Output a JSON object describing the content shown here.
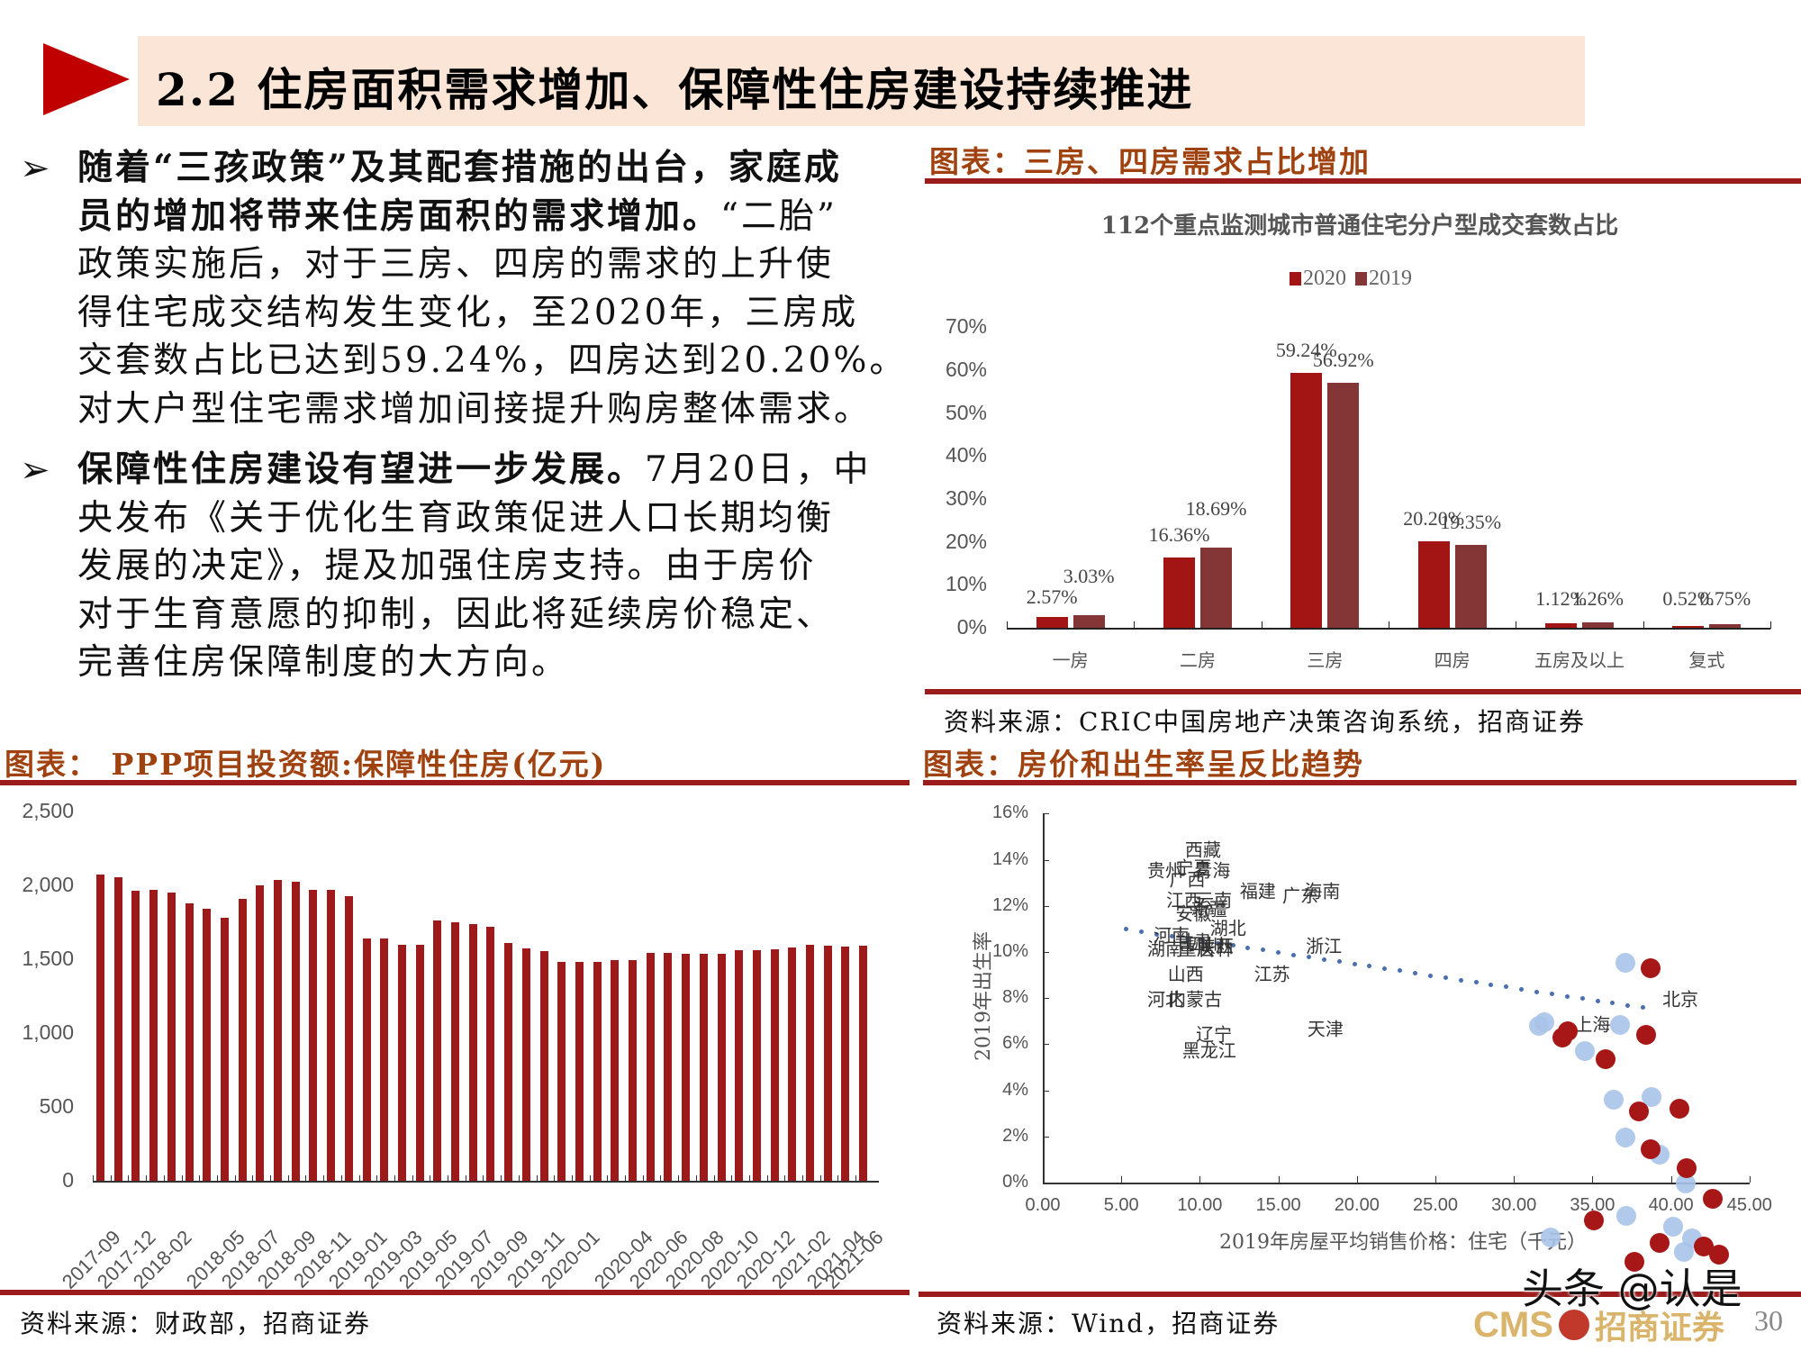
{
  "header": {
    "title": "2.2 住房面积需求增加、保障性住房建设持续推进",
    "accent_color": "#c00000",
    "title_bg": "#fbe5d6"
  },
  "bullets": [
    {
      "lines": [
        {
          "bold": "随着“三孩政策”及其配套措施的出台，家庭成",
          "normal": ""
        },
        {
          "bold": "员的增加将带来住房面积的需求增加。",
          "normal": "“二胎”"
        },
        {
          "bold": "",
          "normal": "政策实施后，对于三房、四房的需求的上升使"
        },
        {
          "bold": "",
          "normal": "得住宅成交结构发生变化，至2020年，三房成"
        },
        {
          "bold": "",
          "normal": "交套数占比已达到59.24%，四房达到20.20%。"
        },
        {
          "bold": "",
          "normal": "对大户型住宅需求增加间接提升购房整体需求。"
        }
      ]
    },
    {
      "lines": [
        {
          "bold": "保障性住房建设有望进一步发展。",
          "normal": "7月20日，中"
        },
        {
          "bold": "",
          "normal": "央发布《关于优化生育政策促进人口长期均衡"
        },
        {
          "bold": "",
          "normal": "发展的决定》，提及加强住房支持。由于房价"
        },
        {
          "bold": "",
          "normal": "对于生育意愿的抑制，因此将延续房价稳定、"
        },
        {
          "bold": "",
          "normal": "完善住房保障制度的大方向。"
        }
      ]
    }
  ],
  "bullet_icon": "arrowhead-bullet-icon",
  "chart1_header": {
    "title": "图表：三房、四房需求占比增加",
    "source": "资料来源：CRIC中国房地产决策咨询系统，招商证券"
  },
  "chart2_header": {
    "title": "图表： PPP项目投资额:保障性住房(亿元)",
    "source": "资料来源：财政部，招商证券"
  },
  "chart3_header": {
    "title": "图表：房价和出生率呈反比趋势",
    "source": "资料来源：Wind，招商证券"
  },
  "footer": {
    "watermark": "头条 @认是",
    "logo_text": "CMS",
    "logo_cn": "招商证券",
    "page_number": "30"
  },
  "chart_data": [
    {
      "type": "bar",
      "title": "112个重点监测城市普通住宅分户型成交套数占比",
      "categories": [
        "一房",
        "二房",
        "三房",
        "四房",
        "五房及以上",
        "复式"
      ],
      "series": [
        {
          "name": "2020",
          "color": "#a31515",
          "values": [
            2.57,
            16.36,
            59.24,
            20.2,
            1.12,
            0.52
          ],
          "labels": [
            "2.57%",
            "16.36%",
            "59.24%",
            "20.20%",
            "1.12%",
            "0.52%"
          ]
        },
        {
          "name": "2019",
          "color": "#843535",
          "values": [
            3.03,
            18.69,
            56.92,
            19.35,
            1.26,
            0.75
          ],
          "labels": [
            "3.03%",
            "18.69%",
            "56.92%",
            "19.35%",
            "1.26%",
            "0.75%"
          ]
        }
      ],
      "yticks": [
        "0%",
        "10%",
        "20%",
        "30%",
        "40%",
        "50%",
        "60%",
        "70%"
      ],
      "ylim": [
        0,
        70
      ],
      "legend_position": "top",
      "grid": false
    },
    {
      "type": "bar",
      "title": "PPP项目投资额:保障性住房(亿元)",
      "x": [
        "2017-09",
        "2017-10",
        "2017-12",
        "2018-01",
        "2018-02",
        "2018-03",
        "2018-04",
        "2018-05",
        "2018-06",
        "2018-07",
        "2018-08",
        "2018-09",
        "2018-10",
        "2018-11",
        "2018-12",
        "2019-01",
        "2019-02",
        "2019-03",
        "2019-04",
        "2019-05",
        "2019-06",
        "2019-07",
        "2019-08",
        "2019-09",
        "2019-10",
        "2019-11",
        "2019-12",
        "2020-01",
        "2020-02",
        "2020-03",
        "2020-04",
        "2020-05",
        "2020-06",
        "2020-07",
        "2020-08",
        "2020-09",
        "2020-10",
        "2020-11",
        "2020-12",
        "2021-01",
        "2021-02",
        "2021-03",
        "2021-04",
        "2021-06"
      ],
      "tick_labels": [
        "2017-09",
        "2017-12",
        "2018-02",
        "2018-05",
        "2018-07",
        "2018-09",
        "2018-11",
        "2019-01",
        "2019-03",
        "2019-05",
        "2019-07",
        "2019-09",
        "2019-11",
        "2020-01",
        "2020-04",
        "2020-06",
        "2020-08",
        "2020-10",
        "2020-12",
        "2021-02",
        "2021-04",
        "2021-06"
      ],
      "values": [
        2071,
        2055,
        1966,
        1968,
        1952,
        1880,
        1843,
        1778,
        1910,
        2003,
        2034,
        2026,
        1968,
        1968,
        1929,
        1641,
        1641,
        1597,
        1597,
        1760,
        1748,
        1740,
        1720,
        1611,
        1574,
        1556,
        1481,
        1481,
        1481,
        1495,
        1495,
        1542,
        1542,
        1536,
        1536,
        1536,
        1564,
        1564,
        1570,
        1582,
        1595,
        1593,
        1587,
        1591
      ],
      "color": "#9e1a1a",
      "yticks": [
        "0",
        "500",
        "1,000",
        "1,500",
        "2,000",
        "2,500"
      ],
      "ylim": [
        0,
        2500
      ],
      "xlabel": "",
      "ylabel": "",
      "grid": false
    },
    {
      "type": "scatter",
      "title": "房价和出生率呈反比趋势",
      "xlabel": "2019年房屋平均销售价格：住宅（千元）",
      "ylabel": "2019年出生率",
      "xticks": [
        "0.00",
        "5.00",
        "10.00",
        "15.00",
        "20.00",
        "25.00",
        "30.00",
        "35.00",
        "40.00",
        "45.00"
      ],
      "yticks": [
        "0%",
        "2%",
        "4%",
        "6%",
        "8%",
        "10%",
        "12%",
        "14%",
        "16%"
      ],
      "xlim": [
        0,
        45
      ],
      "ylim": [
        0,
        16
      ],
      "points": [
        {
          "label": "西藏",
          "x": 10.2,
          "y": 14.5
        },
        {
          "label": "贵州",
          "x": 7.8,
          "y": 13.6
        },
        {
          "label": "宁夏",
          "x": 9.6,
          "y": 13.7
        },
        {
          "label": "青海",
          "x": 10.8,
          "y": 13.6
        },
        {
          "label": "广西",
          "x": 9.2,
          "y": 13.2
        },
        {
          "label": "江西",
          "x": 9.0,
          "y": 12.3
        },
        {
          "label": "云南",
          "x": 10.9,
          "y": 12.3
        },
        {
          "label": "安徽",
          "x": 9.6,
          "y": 11.7
        },
        {
          "label": "新疆",
          "x": 10.6,
          "y": 11.9
        },
        {
          "label": "湖北",
          "x": 11.8,
          "y": 11.1
        },
        {
          "label": "河南",
          "x": 8.2,
          "y": 10.8
        },
        {
          "label": "甘肃",
          "x": 9.6,
          "y": 10.5
        },
        {
          "label": "四川",
          "x": 10.4,
          "y": 10.4
        },
        {
          "label": "陕西",
          "x": 11.0,
          "y": 10.3
        },
        {
          "label": "湖南",
          "x": 7.8,
          "y": 10.2
        },
        {
          "label": "重庆",
          "x": 9.8,
          "y": 10.2
        },
        {
          "label": "吉林",
          "x": 11.0,
          "y": 10.2
        },
        {
          "label": "福建",
          "x": 13.7,
          "y": 12.7
        },
        {
          "label": "广东",
          "x": 16.4,
          "y": 12.5
        },
        {
          "label": "海南",
          "x": 17.8,
          "y": 12.7
        },
        {
          "label": "浙江",
          "x": 17.9,
          "y": 10.3
        },
        {
          "label": "山西",
          "x": 9.1,
          "y": 9.1
        },
        {
          "label": "江苏",
          "x": 14.6,
          "y": 9.1
        },
        {
          "label": "河北",
          "x": 7.8,
          "y": 8.0
        },
        {
          "label": "内蒙古",
          "x": 9.7,
          "y": 8.0
        },
        {
          "label": "天津",
          "x": 18.0,
          "y": 6.7
        },
        {
          "label": "辽宁",
          "x": 10.9,
          "y": 6.5
        },
        {
          "label": "黑龙江",
          "x": 10.6,
          "y": 5.8
        },
        {
          "label": "上海",
          "x": 35.0,
          "y": 6.9
        },
        {
          "label": "北京",
          "x": 40.6,
          "y": 8.0
        }
      ],
      "trendline": {
        "style": "dotted",
        "color": "#4a6fb0",
        "x": [
          5.3,
          38.2
        ],
        "y": [
          11.0,
          7.6
        ]
      },
      "grid": false
    }
  ]
}
